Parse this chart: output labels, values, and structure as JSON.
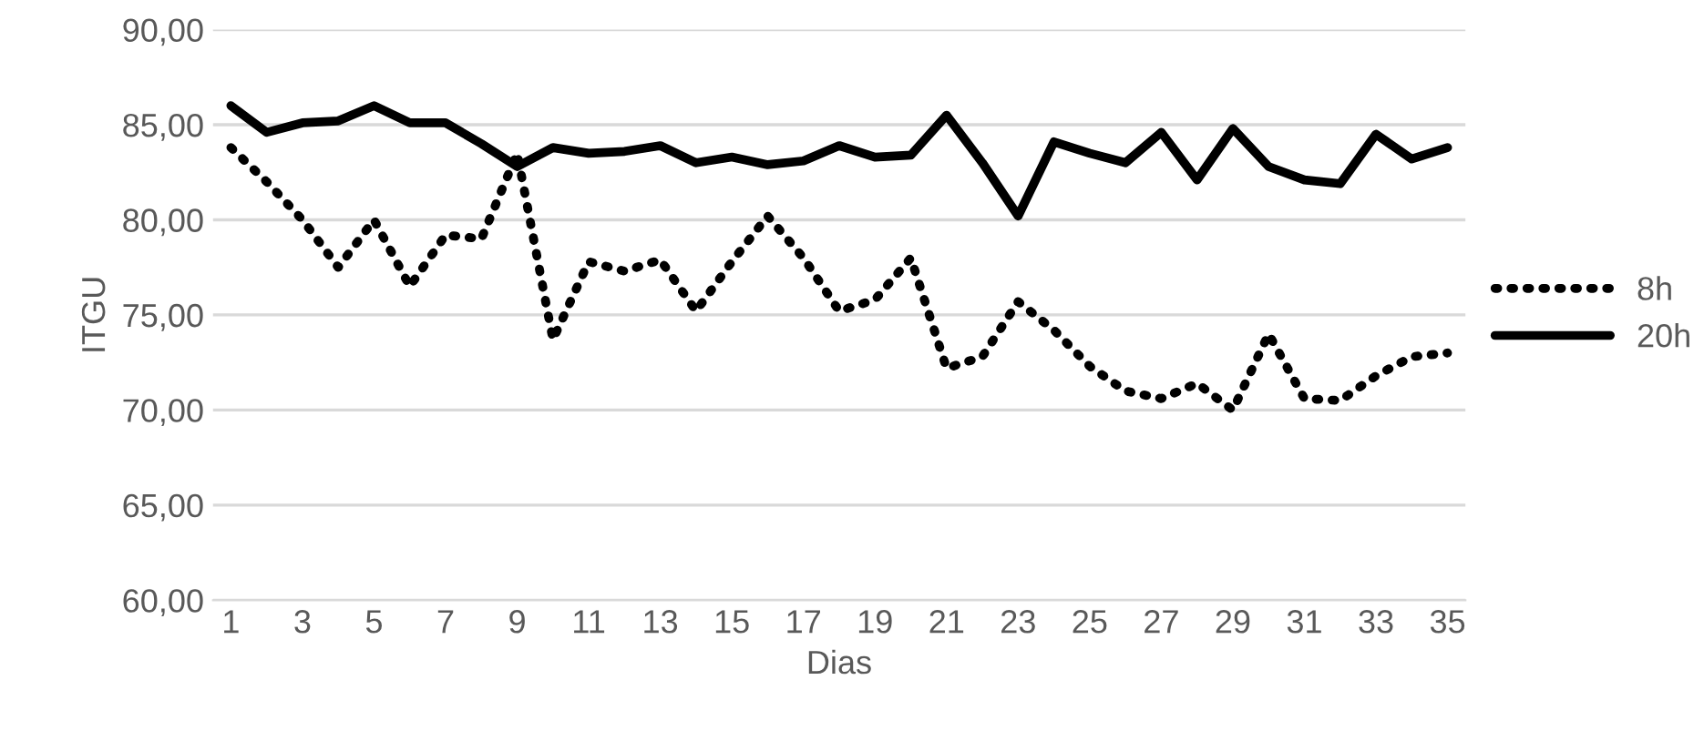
{
  "chart_data": {
    "type": "line",
    "xlabel": "Dias",
    "ylabel": "ITGU",
    "x": [
      1,
      2,
      3,
      4,
      5,
      6,
      7,
      8,
      9,
      10,
      11,
      12,
      13,
      14,
      15,
      16,
      17,
      18,
      19,
      20,
      21,
      22,
      23,
      24,
      25,
      26,
      27,
      28,
      29,
      30,
      31,
      32,
      33,
      34,
      35
    ],
    "series": [
      {
        "name": "8h",
        "color": "#000000",
        "line_style": "dotted",
        "values": [
          83.8,
          82.0,
          80.0,
          77.5,
          80.0,
          76.5,
          79.2,
          79.0,
          83.5,
          73.7,
          77.8,
          77.3,
          77.9,
          75.2,
          77.8,
          80.2,
          78.0,
          75.2,
          75.8,
          78.0,
          72.2,
          72.8,
          75.7,
          74.2,
          72.3,
          71.0,
          70.6,
          71.4,
          70.0,
          74.0,
          70.6,
          70.5,
          71.8,
          72.8,
          73.0
        ]
      },
      {
        "name": "20h",
        "color": "#000000",
        "line_style": "solid",
        "values": [
          86.0,
          84.6,
          85.1,
          85.2,
          86.0,
          85.1,
          85.1,
          84.0,
          82.8,
          83.8,
          83.5,
          83.6,
          83.9,
          83.0,
          83.3,
          82.9,
          83.1,
          83.9,
          83.3,
          83.4,
          85.5,
          83.0,
          80.2,
          84.1,
          83.5,
          83.0,
          84.6,
          82.1,
          84.8,
          82.8,
          82.1,
          81.9,
          84.5,
          83.2,
          83.8
        ]
      }
    ],
    "xlim": [
      0.5,
      35.5
    ],
    "xticks": [
      1,
      3,
      5,
      7,
      9,
      11,
      13,
      15,
      17,
      19,
      21,
      23,
      25,
      27,
      29,
      31,
      33,
      35
    ],
    "ylim": [
      60,
      90
    ],
    "yticks": [
      {
        "value": 60,
        "label": "60,00"
      },
      {
        "value": 65,
        "label": "65,00"
      },
      {
        "value": 70,
        "label": "70,00"
      },
      {
        "value": 75,
        "label": "75,00"
      },
      {
        "value": 80,
        "label": "80,00"
      },
      {
        "value": 85,
        "label": "85,00"
      },
      {
        "value": 90,
        "label": "90,00"
      }
    ],
    "grid": "y",
    "legend": "right"
  }
}
